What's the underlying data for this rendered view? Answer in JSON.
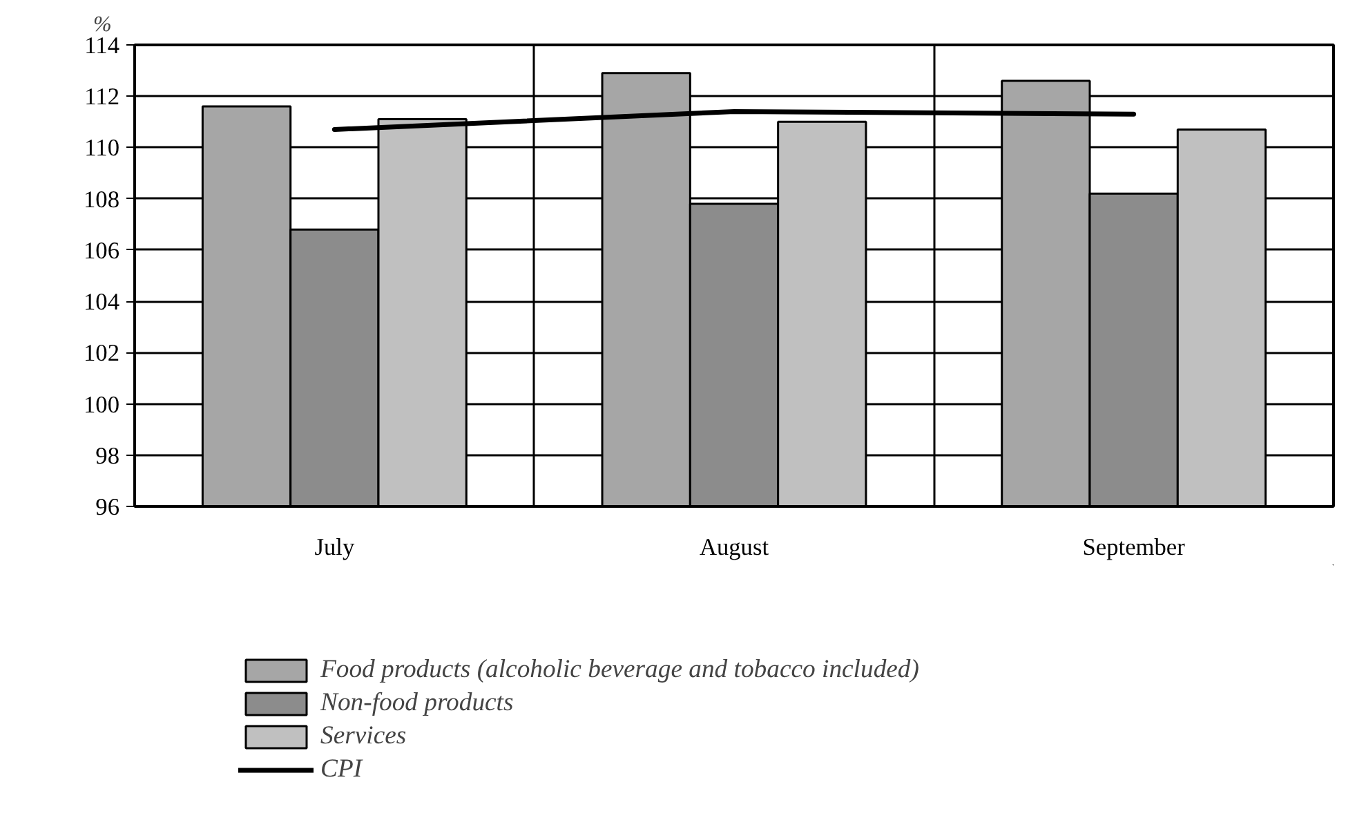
{
  "chart_data": {
    "type": "bar",
    "ylabel": "%",
    "categories": [
      "July",
      "August",
      "September"
    ],
    "series": [
      {
        "name": "Food products (alcoholic beverage and tobacco included)",
        "color": "#a6a6a6",
        "values": [
          111.6,
          112.9,
          112.6
        ]
      },
      {
        "name": "Non-food products",
        "color": "#8c8c8c",
        "values": [
          106.8,
          107.8,
          108.2
        ]
      },
      {
        "name": "Services",
        "color": "#c0c0c0",
        "values": [
          111.1,
          111.0,
          110.7
        ]
      },
      {
        "name": "CPI",
        "type": "line",
        "color": "#000000",
        "values": [
          110.7,
          111.4,
          111.3
        ]
      }
    ],
    "ylim": [
      96,
      114
    ],
    "yticks": [
      96,
      98,
      100,
      102,
      104,
      106,
      108,
      110,
      112,
      114
    ],
    "grid": true,
    "legend": "bottom",
    "marker": "none",
    "line_style": "solid"
  }
}
